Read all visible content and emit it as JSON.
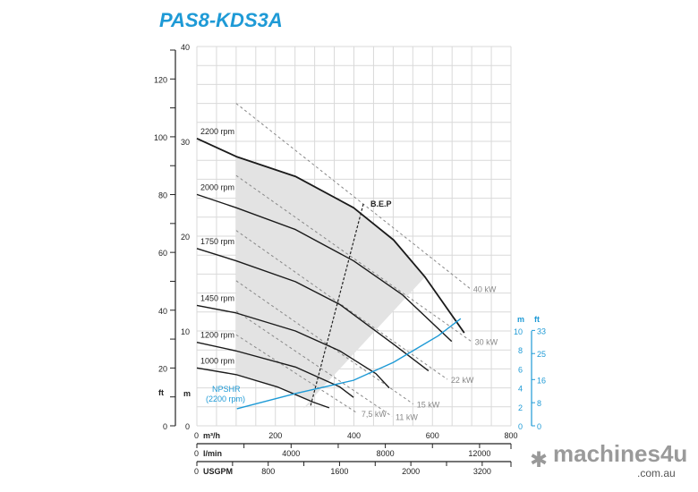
{
  "title": "PAS8-KDS3A",
  "logo": {
    "text": "machines4u",
    "suffix": ".com.au"
  },
  "colors": {
    "curve": "#1a1a1a",
    "npshr": "#1e9ad6",
    "power": "#888888",
    "grid": "#d9d9d9",
    "shade": "#e3e3e3",
    "title": "#1e9ad6"
  },
  "chart_data": {
    "type": "line",
    "title": "PAS8-KDS3A",
    "grid": true,
    "x_axis": {
      "label": "m³/h",
      "range": [
        0,
        800
      ],
      "ticks": [
        0,
        200,
        400,
        600,
        800
      ]
    },
    "x_axis_lmin": {
      "label": "l/min",
      "ticks": [
        0,
        4000,
        8000,
        12000
      ]
    },
    "x_axis_usgpm": {
      "label": "USGPM",
      "ticks": [
        "0",
        "800",
        "1600",
        "2000",
        "3200"
      ]
    },
    "y_axis_m": {
      "label": "m",
      "range": [
        0,
        40
      ],
      "ticks": [
        0,
        10,
        20,
        30,
        40
      ]
    },
    "y_axis_ft": {
      "label": "ft",
      "ticks": [
        0,
        20,
        40,
        60,
        80,
        100,
        120
      ]
    },
    "y2_axis_m": {
      "label": "m",
      "range": [
        0,
        10
      ],
      "ticks": [
        0,
        2,
        4,
        6,
        8,
        10
      ]
    },
    "y2_axis_ft": {
      "label": "ft",
      "ticks": [
        0,
        8,
        16,
        25,
        33
      ]
    },
    "series": [
      {
        "name": "2200 rpm",
        "points": [
          [
            0,
            30.3
          ],
          [
            100,
            28.4
          ],
          [
            251,
            26.3
          ],
          [
            399,
            23.0
          ],
          [
            501,
            19.6
          ],
          [
            581,
            15.7
          ],
          [
            681,
            9.8
          ]
        ]
      },
      {
        "name": "2000 rpm",
        "points": [
          [
            0,
            24.4
          ],
          [
            100,
            23.0
          ],
          [
            251,
            20.7
          ],
          [
            399,
            17.4
          ],
          [
            524,
            13.8
          ],
          [
            649,
            8.9
          ]
        ]
      },
      {
        "name": "1750 rpm",
        "points": [
          [
            0,
            18.7
          ],
          [
            100,
            17.4
          ],
          [
            251,
            15.2
          ],
          [
            364,
            12.8
          ],
          [
            501,
            8.6
          ],
          [
            590,
            5.8
          ]
        ]
      },
      {
        "name": "1450 rpm",
        "points": [
          [
            0,
            12.7
          ],
          [
            100,
            11.9
          ],
          [
            251,
            10.0
          ],
          [
            364,
            7.9
          ],
          [
            456,
            5.5
          ],
          [
            490,
            4.0
          ]
        ]
      },
      {
        "name": "1200 rpm",
        "points": [
          [
            0,
            8.8
          ],
          [
            100,
            7.9
          ],
          [
            251,
            6.2
          ],
          [
            364,
            4.1
          ],
          [
            399,
            3.0
          ]
        ]
      },
      {
        "name": "1000 rpm",
        "points": [
          [
            0,
            6.1
          ],
          [
            100,
            5.4
          ],
          [
            205,
            4.1
          ],
          [
            296,
            2.5
          ],
          [
            337,
            1.9
          ]
        ]
      }
    ],
    "npshr": {
      "name": "NPSHR",
      "sub": "(2200 rpm)",
      "points": [
        [
          102,
          1.8
        ],
        [
          251,
          3.4
        ],
        [
          399,
          4.8
        ],
        [
          501,
          6.7
        ],
        [
          558,
          8.1
        ],
        [
          615,
          9.5
        ],
        [
          672,
          11.3
        ]
      ]
    },
    "power_lines": [
      {
        "name": "40 kW",
        "points": [
          [
            100,
            34.0
          ],
          [
            695,
            14.5
          ]
        ]
      },
      {
        "name": "30 kW",
        "points": [
          [
            100,
            26.4
          ],
          [
            699,
            8.9
          ]
        ]
      },
      {
        "name": "22 kW",
        "points": [
          [
            100,
            20.6
          ],
          [
            638,
            4.9
          ]
        ]
      },
      {
        "name": "15 kW",
        "points": [
          [
            100,
            15.3
          ],
          [
            551,
            2.3
          ]
        ]
      },
      {
        "name": "11 kW",
        "points": [
          [
            100,
            12.1
          ],
          [
            497,
            1.0
          ]
        ]
      },
      {
        "name": "7,5 kW",
        "points": [
          [
            100,
            9.6
          ],
          [
            410,
            1.3
          ]
        ]
      }
    ],
    "bep": {
      "name": "B.E.P",
      "points": [
        [
          424,
          23.4
        ],
        [
          289,
          2.0
        ]
      ]
    }
  }
}
